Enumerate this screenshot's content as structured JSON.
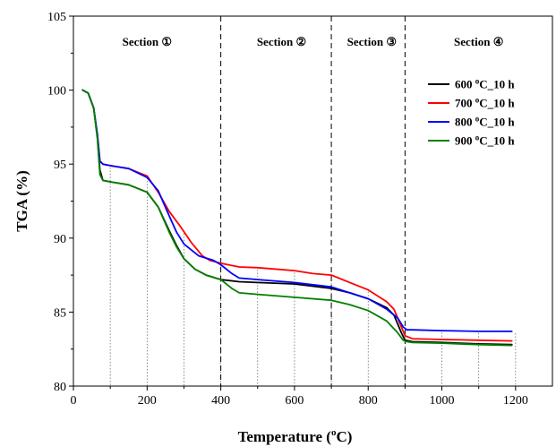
{
  "chart_data": {
    "type": "line",
    "xlabel": "Temperature (",
    "xlabel_sup": "o",
    "xlabel_unit": "C)",
    "ylabel": "TGA (%)",
    "xlim": [
      0,
      1300
    ],
    "ylim": [
      80,
      105
    ],
    "xticks": [
      0,
      200,
      400,
      600,
      800,
      1000,
      1200
    ],
    "yticks": [
      80,
      85,
      90,
      95,
      100,
      105
    ],
    "section_dividers": [
      400,
      700,
      900
    ],
    "sections": [
      {
        "label": "Section ①",
        "x": 200
      },
      {
        "label": "Section ②",
        "x": 565
      },
      {
        "label": "Section ③",
        "x": 810
      },
      {
        "label": "Section ④",
        "x": 1100
      }
    ],
    "dotted_markers": [
      100,
      200,
      300,
      400,
      500,
      600,
      700,
      800,
      900,
      1000,
      1100,
      1200
    ],
    "legend_position": "top-right",
    "series": [
      {
        "name": "600 °C_10 h",
        "label_main": "600 ",
        "label_sup": "o",
        "label_end": "C_10 h",
        "color": "#000000",
        "x": [
          25,
          40,
          55,
          65,
          72,
          80,
          100,
          150,
          200,
          230,
          260,
          280,
          300,
          330,
          360,
          400,
          450,
          500,
          600,
          700,
          750,
          800,
          850,
          870,
          890,
          900,
          920,
          1000,
          1100,
          1190
        ],
        "y": [
          100,
          99.8,
          98.8,
          96.8,
          94.6,
          93.9,
          93.8,
          93.6,
          93.1,
          92.1,
          90.5,
          89.5,
          88.6,
          87.9,
          87.5,
          87.2,
          87.05,
          87.0,
          86.9,
          86.6,
          86.3,
          85.9,
          85.3,
          84.8,
          83.6,
          83.1,
          83.0,
          82.95,
          82.85,
          82.8
        ]
      },
      {
        "name": "700 °C_10 h",
        "label_main": "700 ",
        "label_sup": "o",
        "label_end": "C_10 h",
        "color": "#ff0000",
        "x": [
          25,
          40,
          55,
          65,
          72,
          80,
          100,
          150,
          200,
          230,
          260,
          290,
          320,
          350,
          370,
          400,
          450,
          500,
          600,
          650,
          700,
          750,
          800,
          850,
          870,
          890,
          900,
          920,
          1000,
          1100,
          1190
        ],
        "y": [
          100,
          99.8,
          98.8,
          97.0,
          95.2,
          95.0,
          94.9,
          94.7,
          94.2,
          93.1,
          91.8,
          90.8,
          89.7,
          88.8,
          88.5,
          88.3,
          88.05,
          88.0,
          87.8,
          87.6,
          87.5,
          87.0,
          86.5,
          85.7,
          85.2,
          84.0,
          83.4,
          83.2,
          83.15,
          83.1,
          83.05
        ]
      },
      {
        "name": "800 °C_10 h",
        "label_main": "800 ",
        "label_sup": "o",
        "label_end": "C_10 h",
        "color": "#0000ff",
        "x": [
          25,
          40,
          55,
          65,
          72,
          80,
          100,
          150,
          200,
          230,
          260,
          280,
          300,
          340,
          380,
          400,
          430,
          450,
          500,
          600,
          700,
          750,
          800,
          850,
          880,
          895,
          905,
          920,
          1000,
          1100,
          1190
        ],
        "y": [
          100,
          99.8,
          98.8,
          97.0,
          95.2,
          95.0,
          94.9,
          94.7,
          94.1,
          93.2,
          91.5,
          90.4,
          89.6,
          88.8,
          88.5,
          88.2,
          87.6,
          87.3,
          87.2,
          87.0,
          86.7,
          86.3,
          85.9,
          85.2,
          84.6,
          84.0,
          83.8,
          83.8,
          83.75,
          83.7,
          83.7
        ]
      },
      {
        "name": "900 °C_10 h",
        "label_main": "900 ",
        "label_sup": "o",
        "label_end": "C_10 h",
        "color": "#008000",
        "x": [
          25,
          40,
          55,
          65,
          72,
          80,
          100,
          150,
          200,
          230,
          260,
          280,
          300,
          330,
          360,
          400,
          430,
          450,
          500,
          600,
          700,
          750,
          800,
          850,
          880,
          895,
          905,
          920,
          1000,
          1100,
          1190
        ],
        "y": [
          100,
          99.8,
          98.8,
          96.7,
          94.3,
          93.9,
          93.8,
          93.6,
          93.1,
          92.1,
          90.4,
          89.4,
          88.6,
          87.9,
          87.5,
          87.2,
          86.6,
          86.3,
          86.2,
          86.0,
          85.8,
          85.5,
          85.1,
          84.4,
          83.6,
          83.1,
          83.0,
          82.95,
          82.9,
          82.8,
          82.75
        ]
      }
    ]
  }
}
